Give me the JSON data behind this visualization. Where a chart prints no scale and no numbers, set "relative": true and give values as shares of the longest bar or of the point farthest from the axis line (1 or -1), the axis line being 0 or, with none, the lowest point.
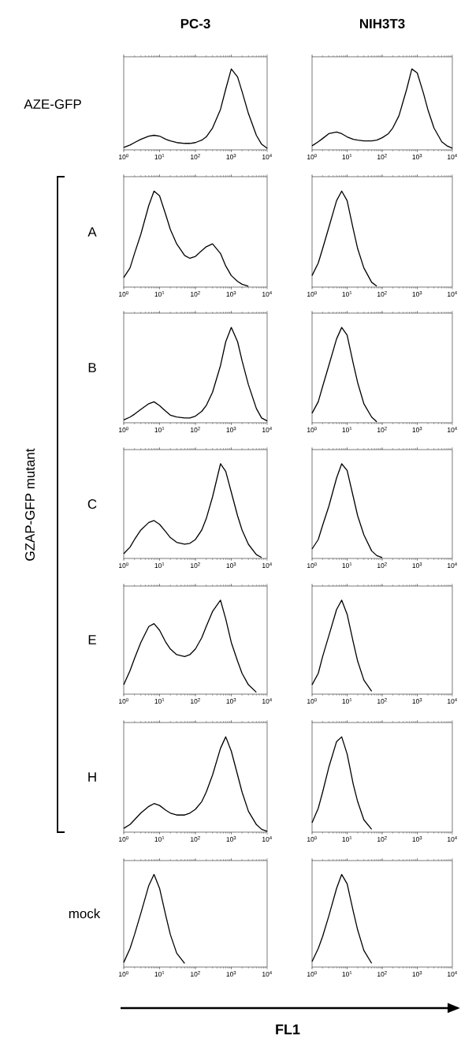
{
  "chart_data": [
    {
      "type": "line",
      "title": "PC-3",
      "ylabel": "AZE-GFP",
      "relative": true,
      "log": "x",
      "xlim": [
        1,
        10000
      ],
      "xticks": [
        {
          "value": 1,
          "label": "10$^{0}$"
        },
        {
          "value": 10,
          "label": "10$^{1}$"
        },
        {
          "value": 100,
          "label": "10$^{2}$"
        },
        {
          "value": 1000,
          "label": "10$^{3}$"
        },
        {
          "value": 10000,
          "label": "10$^{4}$"
        }
      ],
      "color": "#000000",
      "x": [
        1,
        1.5,
        2,
        3,
        5,
        7,
        10,
        15,
        20,
        30,
        50,
        70,
        100,
        150,
        200,
        300,
        500,
        700,
        1000,
        1500,
        2000,
        3000,
        5000,
        7000,
        10000
      ],
      "values": [
        0.03,
        0.06,
        0.09,
        0.13,
        0.17,
        0.18,
        0.17,
        0.13,
        0.11,
        0.09,
        0.08,
        0.08,
        0.09,
        0.12,
        0.16,
        0.27,
        0.5,
        0.75,
        1.0,
        0.9,
        0.72,
        0.45,
        0.18,
        0.07,
        0.02
      ]
    },
    {
      "type": "line",
      "title": "NIH3T3",
      "relative": true,
      "log": "x",
      "xlim": [
        1,
        10000
      ],
      "xticks": [
        {
          "value": 1,
          "label": "10$^{0}$"
        },
        {
          "value": 10,
          "label": "10$^{1}$"
        },
        {
          "value": 100,
          "label": "10$^{2}$"
        },
        {
          "value": 1000,
          "label": "10$^{3}$"
        },
        {
          "value": 10000,
          "label": "10$^{4}$"
        }
      ],
      "color": "#000000",
      "x": [
        1,
        1.5,
        2,
        3,
        5,
        7,
        10,
        15,
        20,
        30,
        50,
        70,
        100,
        150,
        200,
        300,
        500,
        700,
        1000,
        1500,
        2000,
        3000,
        5000,
        7000,
        10000
      ],
      "values": [
        0.05,
        0.1,
        0.14,
        0.2,
        0.22,
        0.2,
        0.16,
        0.13,
        0.12,
        0.11,
        0.11,
        0.12,
        0.15,
        0.2,
        0.27,
        0.42,
        0.75,
        1.0,
        0.95,
        0.7,
        0.5,
        0.27,
        0.1,
        0.05,
        0.02
      ]
    },
    {
      "type": "line",
      "ylabel": "A",
      "relative": true,
      "log": "x",
      "xlim": [
        1,
        10000
      ],
      "xticks": [
        {
          "value": 1,
          "label": "10$^{0}$"
        },
        {
          "value": 10,
          "label": "10$^{1}$"
        },
        {
          "value": 100,
          "label": "10$^{2}$"
        },
        {
          "value": 1000,
          "label": "10$^{3}$"
        },
        {
          "value": 10000,
          "label": "10$^{4}$"
        }
      ],
      "color": "#000000",
      "annotations": [
        "GZAP-GFP mutant"
      ],
      "x": [
        1,
        1.5,
        2,
        3,
        5,
        7,
        10,
        15,
        20,
        30,
        50,
        70,
        100,
        150,
        200,
        300,
        500,
        700,
        1000,
        1500,
        2000,
        3000
      ],
      "values": [
        0.1,
        0.2,
        0.35,
        0.55,
        0.85,
        1.0,
        0.95,
        0.75,
        0.6,
        0.45,
        0.33,
        0.3,
        0.32,
        0.38,
        0.42,
        0.45,
        0.35,
        0.22,
        0.12,
        0.06,
        0.03,
        0.01
      ]
    },
    {
      "type": "line",
      "relative": true,
      "log": "x",
      "xlim": [
        1,
        10000
      ],
      "xticks": [
        {
          "value": 1,
          "label": "10$^{0}$"
        },
        {
          "value": 10,
          "label": "10$^{1}$"
        },
        {
          "value": 100,
          "label": "10$^{2}$"
        },
        {
          "value": 1000,
          "label": "10$^{3}$"
        },
        {
          "value": 10000,
          "label": "10$^{4}$"
        }
      ],
      "color": "#000000",
      "x": [
        1,
        1.5,
        2,
        3,
        5,
        7,
        10,
        15,
        20,
        30,
        50,
        70
      ],
      "values": [
        0.12,
        0.25,
        0.4,
        0.62,
        0.9,
        1.0,
        0.9,
        0.6,
        0.4,
        0.2,
        0.05,
        0.01
      ]
    },
    {
      "type": "line",
      "ylabel": "B",
      "relative": true,
      "log": "x",
      "xlim": [
        1,
        10000
      ],
      "xticks": [
        {
          "value": 1,
          "label": "10$^{0}$"
        },
        {
          "value": 10,
          "label": "10$^{1}$"
        },
        {
          "value": 100,
          "label": "10$^{2}$"
        },
        {
          "value": 1000,
          "label": "10$^{3}$"
        },
        {
          "value": 10000,
          "label": "10$^{4}$"
        }
      ],
      "color": "#000000",
      "x": [
        1,
        1.5,
        2,
        3,
        5,
        7,
        10,
        15,
        20,
        30,
        50,
        70,
        100,
        150,
        200,
        300,
        500,
        700,
        1000,
        1500,
        2000,
        3000,
        5000,
        7000,
        10000
      ],
      "values": [
        0.03,
        0.06,
        0.09,
        0.14,
        0.2,
        0.22,
        0.18,
        0.12,
        0.08,
        0.06,
        0.05,
        0.05,
        0.07,
        0.12,
        0.18,
        0.32,
        0.6,
        0.85,
        1.0,
        0.85,
        0.65,
        0.4,
        0.15,
        0.05,
        0.02
      ]
    },
    {
      "type": "line",
      "relative": true,
      "log": "x",
      "xlim": [
        1,
        10000
      ],
      "xticks": [
        {
          "value": 1,
          "label": "10$^{0}$"
        },
        {
          "value": 10,
          "label": "10$^{1}$"
        },
        {
          "value": 100,
          "label": "10$^{2}$"
        },
        {
          "value": 1000,
          "label": "10$^{3}$"
        },
        {
          "value": 10000,
          "label": "10$^{4}$"
        }
      ],
      "color": "#000000",
      "x": [
        1,
        1.5,
        2,
        3,
        5,
        7,
        10,
        15,
        20,
        30,
        50,
        70
      ],
      "values": [
        0.1,
        0.22,
        0.38,
        0.6,
        0.88,
        1.0,
        0.92,
        0.62,
        0.42,
        0.2,
        0.06,
        0.01
      ]
    },
    {
      "type": "line",
      "ylabel": "C",
      "relative": true,
      "log": "x",
      "xlim": [
        1,
        10000
      ],
      "xticks": [
        {
          "value": 1,
          "label": "10$^{0}$"
        },
        {
          "value": 10,
          "label": "10$^{1}$"
        },
        {
          "value": 100,
          "label": "10$^{2}$"
        },
        {
          "value": 1000,
          "label": "10$^{3}$"
        },
        {
          "value": 10000,
          "label": "10$^{4}$"
        }
      ],
      "color": "#000000",
      "x": [
        1,
        1.5,
        2,
        3,
        5,
        7,
        10,
        15,
        20,
        30,
        50,
        70,
        100,
        150,
        200,
        300,
        500,
        700,
        1000,
        1500,
        2000,
        3000,
        5000,
        7000
      ],
      "values": [
        0.05,
        0.12,
        0.2,
        0.3,
        0.38,
        0.4,
        0.36,
        0.28,
        0.22,
        0.17,
        0.15,
        0.16,
        0.2,
        0.3,
        0.42,
        0.65,
        1.0,
        0.92,
        0.7,
        0.45,
        0.3,
        0.15,
        0.04,
        0.01
      ]
    },
    {
      "type": "line",
      "relative": true,
      "log": "x",
      "xlim": [
        1,
        10000
      ],
      "xticks": [
        {
          "value": 1,
          "label": "10$^{0}$"
        },
        {
          "value": 10,
          "label": "10$^{1}$"
        },
        {
          "value": 100,
          "label": "10$^{2}$"
        },
        {
          "value": 1000,
          "label": "10$^{3}$"
        },
        {
          "value": 10000,
          "label": "10$^{4}$"
        }
      ],
      "color": "#000000",
      "x": [
        1,
        1.5,
        2,
        3,
        5,
        7,
        10,
        15,
        20,
        30,
        50,
        70,
        100
      ],
      "values": [
        0.1,
        0.2,
        0.35,
        0.55,
        0.85,
        1.0,
        0.93,
        0.65,
        0.45,
        0.25,
        0.08,
        0.03,
        0.01
      ]
    },
    {
      "type": "line",
      "ylabel": "E",
      "relative": true,
      "log": "x",
      "xlim": [
        1,
        10000
      ],
      "xticks": [
        {
          "value": 1,
          "label": "10$^{0}$"
        },
        {
          "value": 10,
          "label": "10$^{1}$"
        },
        {
          "value": 100,
          "label": "10$^{2}$"
        },
        {
          "value": 1000,
          "label": "10$^{3}$"
        },
        {
          "value": 10000,
          "label": "10$^{4}$"
        }
      ],
      "color": "#000000",
      "x": [
        1,
        1.5,
        2,
        3,
        5,
        7,
        10,
        15,
        20,
        30,
        50,
        70,
        100,
        150,
        200,
        300,
        500,
        700,
        1000,
        1500,
        2000,
        3000,
        5000
      ],
      "values": [
        0.1,
        0.25,
        0.38,
        0.55,
        0.72,
        0.75,
        0.68,
        0.55,
        0.48,
        0.42,
        0.4,
        0.42,
        0.48,
        0.6,
        0.72,
        0.88,
        1.0,
        0.8,
        0.55,
        0.35,
        0.22,
        0.1,
        0.02
      ]
    },
    {
      "type": "line",
      "relative": true,
      "log": "x",
      "xlim": [
        1,
        10000
      ],
      "xticks": [
        {
          "value": 1,
          "label": "10$^{0}$"
        },
        {
          "value": 10,
          "label": "10$^{1}$"
        },
        {
          "value": 100,
          "label": "10$^{2}$"
        },
        {
          "value": 1000,
          "label": "10$^{3}$"
        },
        {
          "value": 10000,
          "label": "10$^{4}$"
        }
      ],
      "color": "#000000",
      "x": [
        1,
        1.5,
        2,
        3,
        5,
        7,
        10,
        15,
        20,
        30,
        50
      ],
      "values": [
        0.1,
        0.22,
        0.4,
        0.62,
        0.9,
        1.0,
        0.85,
        0.55,
        0.35,
        0.15,
        0.03
      ]
    },
    {
      "type": "line",
      "ylabel": "H",
      "relative": true,
      "log": "x",
      "xlim": [
        1,
        10000
      ],
      "xticks": [
        {
          "value": 1,
          "label": "10$^{0}$"
        },
        {
          "value": 10,
          "label": "10$^{1}$"
        },
        {
          "value": 100,
          "label": "10$^{2}$"
        },
        {
          "value": 1000,
          "label": "10$^{3}$"
        },
        {
          "value": 10000,
          "label": "10$^{4}$"
        }
      ],
      "color": "#000000",
      "x": [
        1,
        1.5,
        2,
        3,
        5,
        7,
        10,
        15,
        20,
        30,
        50,
        70,
        100,
        150,
        200,
        300,
        500,
        700,
        1000,
        1500,
        2000,
        3000,
        5000,
        7000,
        10000
      ],
      "values": [
        0.04,
        0.08,
        0.13,
        0.2,
        0.27,
        0.3,
        0.28,
        0.23,
        0.2,
        0.18,
        0.18,
        0.2,
        0.24,
        0.32,
        0.42,
        0.6,
        0.88,
        1.0,
        0.85,
        0.6,
        0.42,
        0.22,
        0.08,
        0.03,
        0.01
      ]
    },
    {
      "type": "line",
      "relative": true,
      "log": "x",
      "xlim": [
        1,
        10000
      ],
      "xticks": [
        {
          "value": 1,
          "label": "10$^{0}$"
        },
        {
          "value": 10,
          "label": "10$^{1}$"
        },
        {
          "value": 100,
          "label": "10$^{2}$"
        },
        {
          "value": 1000,
          "label": "10$^{3}$"
        },
        {
          "value": 10000,
          "label": "10$^{4}$"
        }
      ],
      "color": "#000000",
      "x": [
        1,
        1.5,
        2,
        3,
        5,
        7,
        10,
        15,
        20,
        30,
        50
      ],
      "values": [
        0.1,
        0.25,
        0.42,
        0.68,
        0.95,
        1.0,
        0.82,
        0.5,
        0.32,
        0.13,
        0.03
      ]
    },
    {
      "type": "line",
      "ylabel": "mock",
      "relative": true,
      "log": "x",
      "xlim": [
        1,
        10000
      ],
      "xticks": [
        {
          "value": 1,
          "label": "10$^{0}$"
        },
        {
          "value": 10,
          "label": "10$^{1}$"
        },
        {
          "value": 100,
          "label": "10$^{2}$"
        },
        {
          "value": 1000,
          "label": "10$^{3}$"
        },
        {
          "value": 10000,
          "label": "10$^{4}$"
        }
      ],
      "color": "#000000",
      "annotations": [
        "FL1"
      ],
      "x": [
        1,
        1.5,
        2,
        3,
        5,
        7,
        10,
        15,
        20,
        30,
        50
      ],
      "values": [
        0.05,
        0.2,
        0.35,
        0.58,
        0.88,
        1.0,
        0.85,
        0.55,
        0.35,
        0.15,
        0.04
      ]
    },
    {
      "type": "line",
      "relative": true,
      "log": "x",
      "xlim": [
        1,
        10000
      ],
      "xticks": [
        {
          "value": 1,
          "label": "10$^{0}$"
        },
        {
          "value": 10,
          "label": "10$^{1}$"
        },
        {
          "value": 100,
          "label": "10$^{2}$"
        },
        {
          "value": 1000,
          "label": "10$^{3}$"
        },
        {
          "value": 10000,
          "label": "10$^{4}$"
        }
      ],
      "color": "#000000",
      "x": [
        1,
        1.5,
        2,
        3,
        5,
        7,
        10,
        15,
        20,
        30,
        50
      ],
      "values": [
        0.06,
        0.2,
        0.33,
        0.55,
        0.85,
        1.0,
        0.9,
        0.6,
        0.4,
        0.18,
        0.04
      ]
    }
  ]
}
